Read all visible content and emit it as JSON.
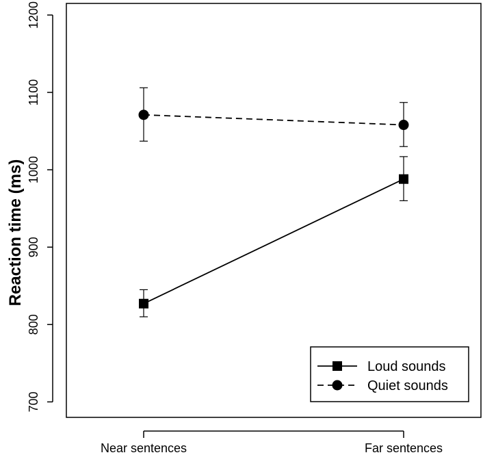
{
  "chart_data": {
    "type": "line",
    "title": "",
    "xlabel": "",
    "ylabel": "Reaction time (ms)",
    "categories": [
      "Near sentences",
      "Far sentences"
    ],
    "ylim": [
      680,
      1215
    ],
    "yticks": [
      700,
      800,
      900,
      1000,
      1100,
      1200
    ],
    "grid": false,
    "legend_position": "bottom-right",
    "series": [
      {
        "name": "Loud sounds",
        "marker": "square",
        "line_style": "solid",
        "values": [
          827,
          988
        ],
        "error_low": [
          810,
          960
        ],
        "error_high": [
          845,
          1017
        ]
      },
      {
        "name": "Quiet sounds",
        "marker": "circle",
        "line_style": "dashed",
        "values": [
          1071,
          1058
        ],
        "error_low": [
          1037,
          1030
        ],
        "error_high": [
          1106,
          1087
        ]
      }
    ]
  }
}
